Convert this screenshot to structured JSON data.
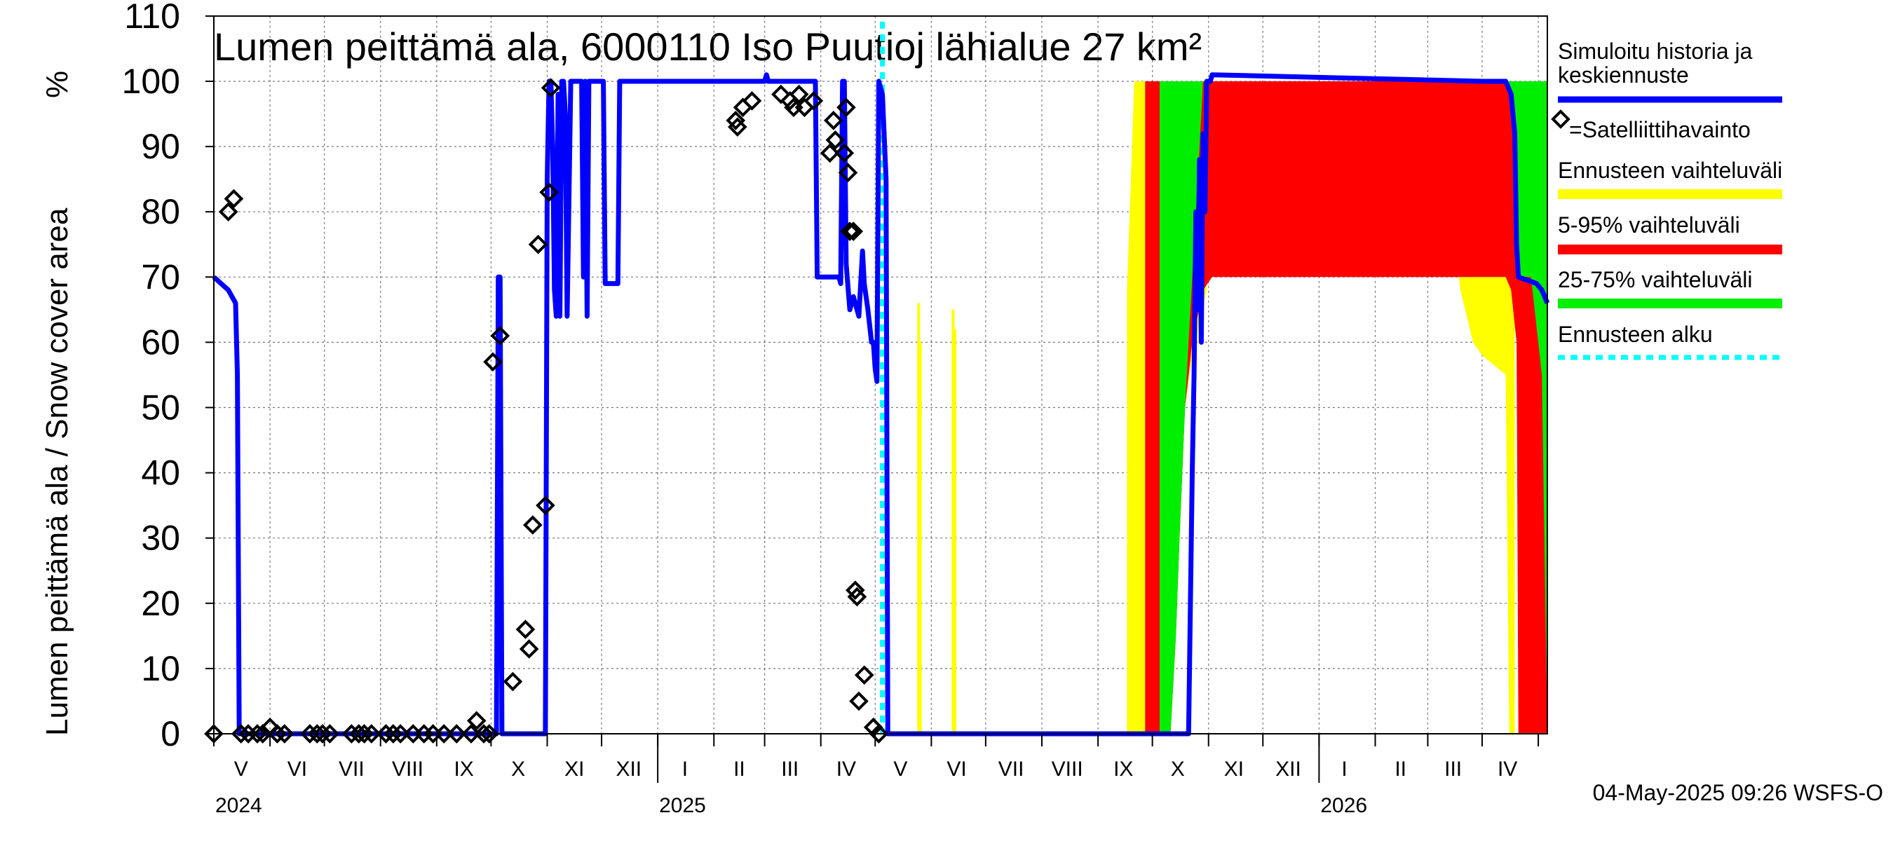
{
  "chart_data": {
    "type": "area",
    "title": "Lumen peittämä ala, 6000110 Iso Puutioj lähialue 27 km²",
    "ylabel": "Lumen peittämä ala / Snow cover area",
    "yunit": "%",
    "ylim": [
      0,
      110
    ],
    "yticks": [
      0,
      10,
      20,
      30,
      40,
      50,
      60,
      70,
      80,
      90,
      100,
      110
    ],
    "grid": true,
    "xrange_days": [
      0,
      736
    ],
    "month_labels": [
      {
        "label": "V",
        "day": 15
      },
      {
        "label": "VI",
        "day": 46
      },
      {
        "label": "VII",
        "day": 76
      },
      {
        "label": "VIII",
        "day": 107
      },
      {
        "label": "IX",
        "day": 138
      },
      {
        "label": "X",
        "day": 168
      },
      {
        "label": "XI",
        "day": 199
      },
      {
        "label": "XII",
        "day": 229
      },
      {
        "label": "I",
        "day": 260
      },
      {
        "label": "II",
        "day": 290
      },
      {
        "label": "III",
        "day": 318
      },
      {
        "label": "IV",
        "day": 349
      },
      {
        "label": "V",
        "day": 379
      },
      {
        "label": "VI",
        "day": 410
      },
      {
        "label": "VII",
        "day": 440
      },
      {
        "label": "VIII",
        "day": 471
      },
      {
        "label": "IX",
        "day": 502
      },
      {
        "label": "X",
        "day": 532
      },
      {
        "label": "XI",
        "day": 563
      },
      {
        "label": "XII",
        "day": 593
      },
      {
        "label": "I",
        "day": 624
      },
      {
        "label": "II",
        "day": 655
      },
      {
        "label": "III",
        "day": 684
      },
      {
        "label": "IV",
        "day": 714
      }
    ],
    "month_boundaries_days": [
      0,
      31,
      61,
      92,
      123,
      153,
      184,
      214,
      245,
      276,
      304,
      335,
      365,
      396,
      426,
      457,
      488,
      518,
      549,
      579,
      610,
      641,
      670,
      700,
      731
    ],
    "year_labels": [
      {
        "label": "2024",
        "day": 0
      },
      {
        "label": "2025",
        "day": 245
      },
      {
        "label": "2026",
        "day": 610
      }
    ],
    "forecast_start_day": 369,
    "series": [
      {
        "name": "Simuloitu historia ja keskiennuste",
        "color": "#0000ff",
        "points": [
          [
            0,
            70
          ],
          [
            8,
            68
          ],
          [
            12,
            66
          ],
          [
            13,
            55
          ],
          [
            14,
            0
          ],
          [
            156,
            0
          ],
          [
            157,
            70
          ],
          [
            158,
            70
          ],
          [
            159,
            0
          ],
          [
            183,
            0
          ],
          [
            184,
            85
          ],
          [
            185,
            100
          ],
          [
            186,
            100
          ],
          [
            187,
            90
          ],
          [
            188,
            68
          ],
          [
            189,
            64
          ],
          [
            190,
            98
          ],
          [
            191,
            64
          ],
          [
            192,
            100
          ],
          [
            193,
            100
          ],
          [
            194,
            95
          ],
          [
            195,
            64
          ],
          [
            197,
            100
          ],
          [
            203,
            100
          ],
          [
            204,
            70
          ],
          [
            205,
            100
          ],
          [
            206,
            64
          ],
          [
            207,
            100
          ],
          [
            212,
            100
          ],
          [
            213,
            100
          ],
          [
            215,
            100
          ],
          [
            216,
            69
          ],
          [
            218,
            69
          ],
          [
            223,
            69
          ],
          [
            224,
            100
          ],
          [
            304,
            100
          ],
          [
            305,
            101
          ],
          [
            306,
            100
          ],
          [
            328,
            100
          ],
          [
            332,
            100
          ],
          [
            333,
            70
          ],
          [
            345,
            70
          ],
          [
            346,
            69
          ],
          [
            347,
            100
          ],
          [
            348,
            100
          ],
          [
            349,
            72
          ],
          [
            351,
            65
          ],
          [
            353,
            67
          ],
          [
            356,
            64
          ],
          [
            358,
            74
          ],
          [
            359,
            69
          ],
          [
            361,
            65
          ],
          [
            363,
            60
          ],
          [
            364,
            60
          ],
          [
            365,
            56
          ],
          [
            366,
            54
          ],
          [
            367,
            100
          ],
          [
            368,
            99
          ],
          [
            369,
            98
          ],
          [
            371,
            85
          ],
          [
            372,
            0
          ],
          [
            538,
            0
          ],
          [
            540,
            40
          ],
          [
            541,
            55
          ],
          [
            542,
            80
          ],
          [
            543,
            65
          ],
          [
            544,
            88
          ],
          [
            545,
            60
          ],
          [
            546,
            92
          ],
          [
            547,
            80
          ],
          [
            548,
            100
          ],
          [
            550,
            100
          ],
          [
            551,
            101
          ],
          [
            700,
            100
          ],
          [
            713,
            100
          ],
          [
            716,
            98
          ],
          [
            718,
            92
          ],
          [
            719,
            75
          ],
          [
            720,
            70
          ],
          [
            730,
            69
          ],
          [
            733,
            68
          ],
          [
            736,
            66
          ]
        ]
      }
    ],
    "bands": [
      {
        "name": "Ennusteen vaihteluväli",
        "color": "#ffff00",
        "points": [
          [
            504,
            0,
            68
          ],
          [
            508,
            0,
            100
          ],
          [
            528,
            0,
            100
          ],
          [
            531,
            15,
            100
          ],
          [
            533,
            30,
            100
          ],
          [
            536,
            50,
            100
          ],
          [
            540,
            58,
            100
          ],
          [
            548,
            68,
            100
          ],
          [
            551,
            100,
            100
          ],
          [
            632,
            100,
            100
          ],
          [
            637,
            100,
            100
          ],
          [
            668,
            100,
            100
          ],
          [
            674,
            100,
            100
          ],
          [
            688,
            68,
            100
          ],
          [
            695,
            60,
            100
          ],
          [
            700,
            58,
            100
          ],
          [
            713,
            55,
            100
          ],
          [
            715,
            0,
            100
          ],
          [
            718,
            0,
            100
          ]
        ],
        "spikes": [
          {
            "day": 389,
            "top": 66
          },
          {
            "day": 390,
            "top": 60
          },
          {
            "day": 408,
            "top": 65
          },
          {
            "day": 409,
            "top": 62
          }
        ]
      },
      {
        "name": "5-95% vaihteluväli",
        "color": "#ff0000",
        "points": [
          [
            514,
            0,
            100
          ],
          [
            528,
            0,
            100
          ],
          [
            531,
            15,
            100
          ],
          [
            533,
            30,
            100
          ],
          [
            536,
            50,
            100
          ],
          [
            540,
            60,
            100
          ],
          [
            546,
            68,
            100
          ],
          [
            551,
            70,
            100
          ],
          [
            617,
            70,
            100
          ],
          [
            625,
            70,
            100
          ],
          [
            690,
            70,
            100
          ],
          [
            713,
            70,
            100
          ],
          [
            716,
            68,
            100
          ],
          [
            719,
            60,
            100
          ],
          [
            720,
            0,
            100
          ],
          [
            736,
            0,
            100
          ]
        ]
      },
      {
        "name": "25-75% vaihteluväli",
        "color": "#00ee00",
        "points": [
          [
            522,
            0,
            100
          ],
          [
            528,
            0,
            100
          ],
          [
            531,
            15,
            100
          ],
          [
            533,
            30,
            100
          ],
          [
            536,
            50,
            100
          ],
          [
            540,
            70,
            100
          ],
          [
            546,
            100,
            100
          ],
          [
            551,
            100,
            100
          ],
          [
            713,
            100,
            100
          ],
          [
            716,
            98,
            100
          ],
          [
            718,
            92,
            100
          ],
          [
            720,
            70,
            100
          ],
          [
            727,
            70,
            100
          ],
          [
            733,
            55,
            100
          ],
          [
            736,
            0,
            100
          ]
        ]
      }
    ],
    "satellite_observations": {
      "name": "=Satelliittihavainto",
      "marker": "diamond",
      "points": [
        [
          0,
          0
        ],
        [
          8,
          80
        ],
        [
          11,
          82
        ],
        [
          15,
          0
        ],
        [
          19,
          0
        ],
        [
          24,
          0
        ],
        [
          27,
          0
        ],
        [
          31,
          1
        ],
        [
          35,
          0
        ],
        [
          39,
          0
        ],
        [
          53,
          0
        ],
        [
          57,
          0
        ],
        [
          60,
          0
        ],
        [
          64,
          0
        ],
        [
          76,
          0
        ],
        [
          80,
          0
        ],
        [
          83,
          0
        ],
        [
          87,
          0
        ],
        [
          95,
          0
        ],
        [
          99,
          0
        ],
        [
          103,
          0
        ],
        [
          110,
          0
        ],
        [
          116,
          0
        ],
        [
          121,
          0
        ],
        [
          127,
          0
        ],
        [
          134,
          0
        ],
        [
          142,
          0
        ],
        [
          145,
          2
        ],
        [
          149,
          0
        ],
        [
          152,
          0
        ],
        [
          154,
          57
        ],
        [
          158,
          61
        ],
        [
          165,
          8
        ],
        [
          172,
          16
        ],
        [
          174,
          13
        ],
        [
          176,
          32
        ],
        [
          179,
          75
        ],
        [
          183,
          35
        ],
        [
          185,
          83
        ],
        [
          186,
          99
        ],
        [
          288,
          94
        ],
        [
          289,
          93
        ],
        [
          292,
          96
        ],
        [
          297,
          97
        ],
        [
          313,
          98
        ],
        [
          318,
          97
        ],
        [
          320,
          96
        ],
        [
          323,
          98
        ],
        [
          326,
          96
        ],
        [
          331,
          97
        ],
        [
          340,
          89
        ],
        [
          342,
          94
        ],
        [
          343,
          91
        ],
        [
          348,
          89
        ],
        [
          349,
          96
        ],
        [
          350,
          86
        ],
        [
          351,
          77
        ],
        [
          353,
          77
        ],
        [
          354,
          22
        ],
        [
          355,
          21
        ],
        [
          356,
          5
        ],
        [
          359,
          9
        ],
        [
          364,
          1
        ],
        [
          367,
          0
        ]
      ]
    },
    "legend": [
      {
        "label": "Simuloitu historia ja keskiennuste",
        "type": "line",
        "color": "#0000ff"
      },
      {
        "label": "=Satelliittihavainto",
        "type": "marker",
        "color": "#000000"
      },
      {
        "label": "Ennusteen vaihteluväli",
        "type": "line",
        "color": "#ffff00"
      },
      {
        "label": "5-95% vaihteluväli",
        "type": "line",
        "color": "#ff0000"
      },
      {
        "label": "25-75% vaihteluväli",
        "type": "line",
        "color": "#00ee00"
      },
      {
        "label": "Ennusteen alku",
        "type": "dashed",
        "color": "#00ffff"
      }
    ],
    "legend_position": "right",
    "footer": "04-May-2025 09:26 WSFS-O"
  }
}
